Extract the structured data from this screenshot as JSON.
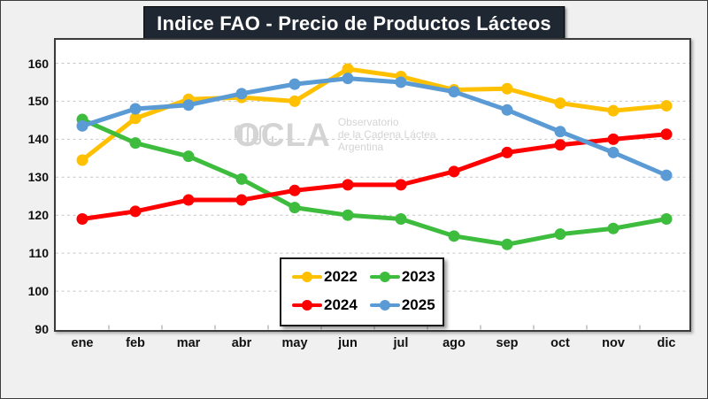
{
  "title": "Indice FAO - Precio de Productos Lácteos",
  "watermark": {
    "brand": "OCLA",
    "line1": "Observatorio",
    "line2": "de la Cadena Láctea",
    "line3": "Argentina",
    "pulse_icon": "pulse-waveform"
  },
  "colors": {
    "background": "#F0F0F0",
    "plot_background": "#FFFFFF",
    "title_background": "#1F2732",
    "title_text": "#FFFFFF",
    "gridline": "#C6C6C6",
    "axis_text": "#111111",
    "watermark_text": "#D4D4D4",
    "series_2022": "#FFC000",
    "series_2023": "#3DBC3D",
    "series_2024": "#FF0000",
    "series_2025": "#5B9BD5"
  },
  "chart_data": {
    "type": "line",
    "title": "Indice FAO - Precio de Productos Lácteos",
    "xlabel": "",
    "ylabel": "",
    "categories": [
      "ene",
      "feb",
      "mar",
      "abr",
      "may",
      "jun",
      "jul",
      "ago",
      "sep",
      "oct",
      "nov",
      "dic"
    ],
    "series": [
      {
        "name": "2022",
        "color": "#FFC000",
        "values": [
          134.5,
          145.5,
          150.5,
          151,
          150,
          158.5,
          156.5,
          153,
          153.3,
          149.5,
          147.5,
          148.8
        ]
      },
      {
        "name": "2023",
        "color": "#3DBC3D",
        "values": [
          145.2,
          139,
          135.5,
          129.5,
          122,
          120,
          119,
          114.5,
          112.3,
          115,
          116.5,
          119
        ]
      },
      {
        "name": "2024",
        "color": "#FF0000",
        "values": [
          119,
          121,
          124,
          124,
          126.5,
          128,
          128,
          131.5,
          136.5,
          138.5,
          140,
          141.3
        ]
      },
      {
        "name": "2025",
        "color": "#5B9BD5",
        "values": [
          143.5,
          148,
          149,
          152,
          154.5,
          156,
          155,
          152.5,
          147.7,
          142,
          136.5,
          130.5
        ]
      }
    ],
    "ylim": [
      90,
      160
    ],
    "yticks": [
      160,
      150,
      140,
      130,
      120,
      110,
      100,
      90
    ],
    "grid": "horizontal-dashed",
    "legend_position": "inside-bottom-center",
    "legend_rows": [
      [
        "2022",
        "2023"
      ],
      [
        "2024",
        "2025"
      ]
    ]
  }
}
